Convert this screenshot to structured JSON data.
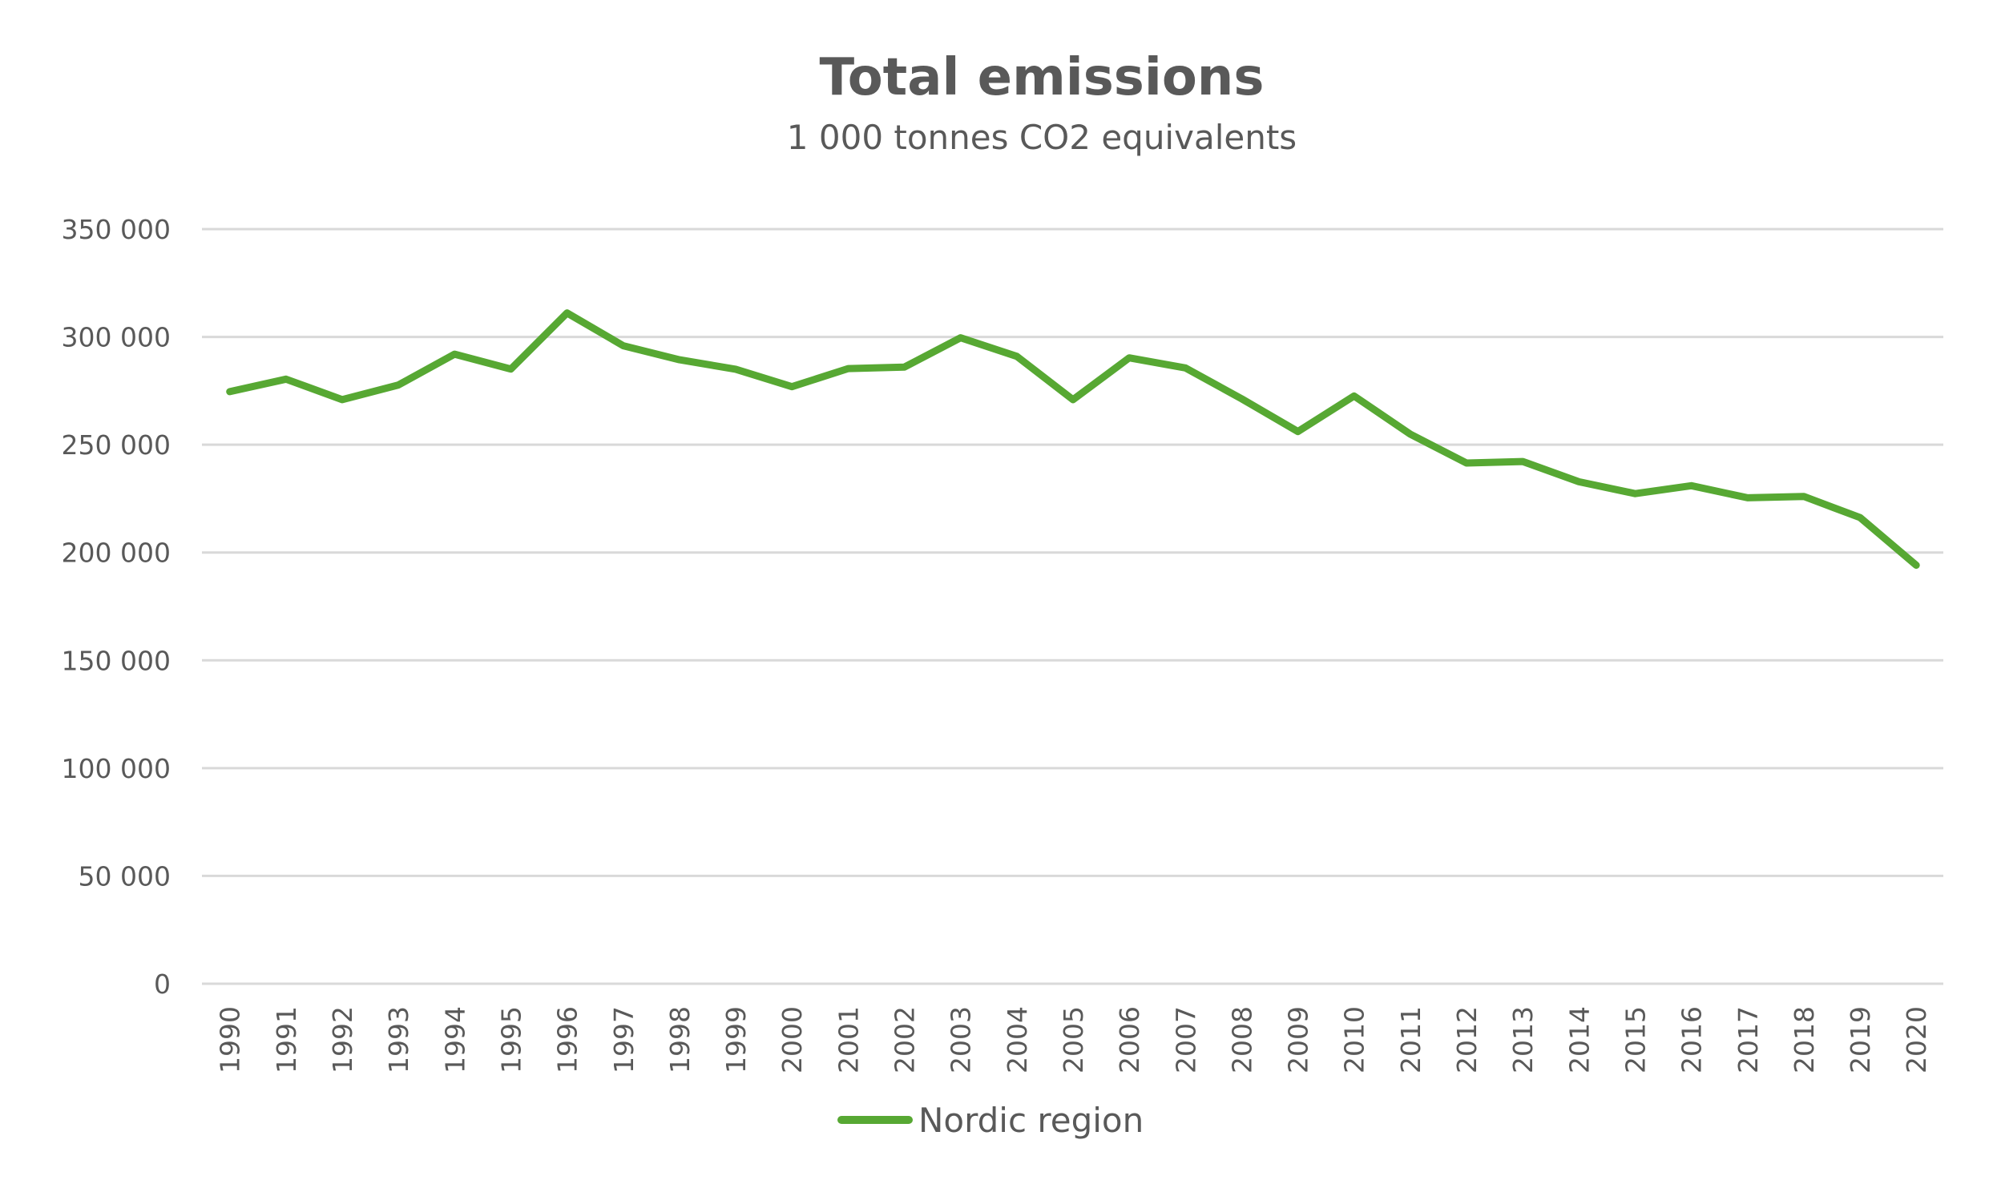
{
  "chart_data": {
    "type": "line",
    "title": "Total emissions",
    "subtitle": "1 000 tonnes CO2 equivalents",
    "xlabel": "",
    "ylabel": "",
    "ylim": [
      0,
      350000
    ],
    "grid": true,
    "legend_position": "bottom",
    "y_ticks": [
      0,
      50000,
      100000,
      150000,
      200000,
      250000,
      300000,
      350000
    ],
    "y_tick_labels": [
      "0",
      "50 000",
      "100 000",
      "150 000",
      "200 000",
      "250 000",
      "300 000",
      "350 000"
    ],
    "categories": [
      "1990",
      "1991",
      "1992",
      "1993",
      "1994",
      "1995",
      "1996",
      "1997",
      "1998",
      "1999",
      "2000",
      "2001",
      "2002",
      "2003",
      "2004",
      "2005",
      "2006",
      "2007",
      "2008",
      "2009",
      "2010",
      "2011",
      "2012",
      "2013",
      "2014",
      "2015",
      "2016",
      "2017",
      "2018",
      "2019",
      "2020"
    ],
    "series": [
      {
        "name": "Nordic region",
        "color": "#57A833",
        "values": [
          274600,
          280400,
          270900,
          277700,
          292000,
          285100,
          311100,
          295900,
          289400,
          285000,
          276900,
          285300,
          286000,
          299600,
          291000,
          270900,
          290300,
          285600,
          271300,
          256100,
          272600,
          254900,
          241500,
          242200,
          232800,
          227300,
          231000,
          225400,
          226000,
          216200,
          194100
        ]
      }
    ]
  },
  "colors": {
    "text": "#595959",
    "gridline": "#D9D9D9",
    "series": "#57A833"
  }
}
